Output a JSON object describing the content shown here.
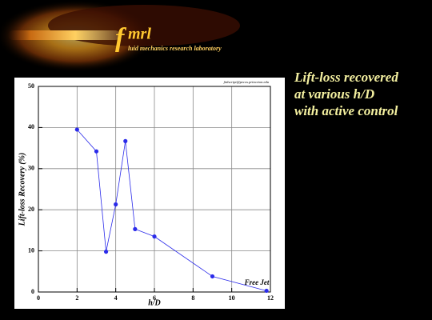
{
  "header": {
    "logo_initial": "f",
    "logo_rest": "mrl",
    "logo_subtitle": "luid mechanics research laboratory"
  },
  "slide_title": [
    "Lift-loss recovered",
    "at various h/D",
    "with active control"
  ],
  "chart_data": {
    "type": "line",
    "credit": "fmlscript@pecos.princeton.edu",
    "x_label": "h/D",
    "y_label": "Lift-loss Recovery (%)",
    "x": [
      2,
      3,
      3.5,
      4,
      4.5,
      5,
      6,
      9,
      11.8
    ],
    "series": [
      {
        "name": null,
        "color": "#2b2bea",
        "values": [
          39.5,
          34.2,
          9.8,
          21.3,
          36.7,
          15.3,
          13.5,
          3.8,
          0.3
        ]
      }
    ],
    "annotation": "Free Jet",
    "xlim": [
      0,
      12
    ],
    "xticks": [
      0,
      2,
      4,
      6,
      8,
      10,
      12
    ],
    "ylim": [
      0,
      50
    ],
    "yticks": [
      0,
      10,
      20,
      30,
      40,
      50
    ],
    "grid": true
  }
}
